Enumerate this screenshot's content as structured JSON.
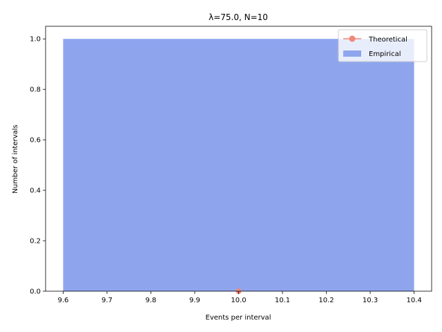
{
  "chart_data": {
    "type": "bar",
    "title": "λ=75.0, N=10",
    "xlabel": "Events per interval",
    "ylabel": "Number of intervals",
    "xlim": [
      9.56,
      10.44
    ],
    "ylim": [
      0,
      1.05
    ],
    "xticks": [
      "9.6",
      "9.7",
      "9.8",
      "9.9",
      "10.0",
      "10.1",
      "10.2",
      "10.3",
      "10.4"
    ],
    "yticks": [
      "0.0",
      "0.2",
      "0.4",
      "0.6",
      "0.8",
      "1.0"
    ],
    "grid": false,
    "legend_position": "top-right",
    "series": [
      {
        "name": "Empirical",
        "kind": "bar",
        "color": "#8ea5ee",
        "bars": [
          {
            "x0": 9.6,
            "x1": 10.4,
            "value": 1.0
          }
        ]
      },
      {
        "name": "Theoretical",
        "kind": "line-marker",
        "color": "#f08878",
        "points": [
          {
            "x": 10.0,
            "y": 0.0
          }
        ]
      }
    ],
    "legend": [
      "Theoretical",
      "Empirical"
    ]
  }
}
